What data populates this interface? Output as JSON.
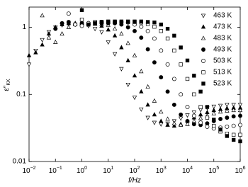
{
  "chart_data": {
    "type": "scatter",
    "xlabel": "f/Hz",
    "ylabel": {
      "symbol": "ε″",
      "subscript": "KK"
    },
    "xscale": "log",
    "yscale": "log",
    "xlim": [
      0.01,
      1000000
    ],
    "ylim": [
      0.01,
      2
    ],
    "xticks": [
      {
        "value": 0.01,
        "label": "10−2"
      },
      {
        "value": 0.1,
        "label": "10−1"
      },
      {
        "value": 1,
        "label": "100"
      },
      {
        "value": 10,
        "label": "101"
      },
      {
        "value": 100,
        "label": "102"
      },
      {
        "value": 1000,
        "label": "103"
      },
      {
        "value": 10000,
        "label": "104"
      },
      {
        "value": 100000,
        "label": "105"
      },
      {
        "value": 1000000,
        "label": "106"
      }
    ],
    "yticks": [
      0.01,
      0.1,
      1
    ],
    "legend": "upper right",
    "x": [
      0.01,
      0.0178,
      0.0316,
      0.0562,
      0.1,
      0.178,
      0.316,
      0.562,
      1,
      1.78,
      3.16,
      5.62,
      10,
      17.8,
      31.6,
      56.2,
      100,
      178,
      316,
      562,
      1000,
      1780,
      3160,
      5620,
      10000,
      17800,
      31600,
      56200,
      100000,
      178000,
      316000,
      562000,
      1000000
    ],
    "series": [
      {
        "name": "463 K",
        "color": "#000000",
        "marker": "triangle-down",
        "filled": false,
        "values": [
          0.28,
          0.45,
          0.65,
          0.85,
          1.0,
          1.08,
          1.1,
          1.1,
          1.1,
          1.05,
          0.95,
          0.85,
          0.6,
          0.4,
          0.24,
          0.14,
          0.09,
          0.06,
          0.045,
          0.038,
          0.036,
          0.037,
          0.04,
          0.044,
          0.049,
          0.054,
          0.059,
          0.063,
          0.066,
          0.068,
          0.07,
          0.07,
          0.07
        ]
      },
      {
        "name": "473 K",
        "color": "#000000",
        "marker": "triangle-up",
        "filled": true,
        "values": [
          0.38,
          0.42,
          0.55,
          0.8,
          1.0,
          1.1,
          1.15,
          1.15,
          1.15,
          1.15,
          1.12,
          1.05,
          0.92,
          0.75,
          0.5,
          0.32,
          0.19,
          0.11,
          0.07,
          0.05,
          0.04,
          0.035,
          0.034,
          0.036,
          0.04,
          0.045,
          0.05,
          0.054,
          0.058,
          0.06,
          0.062,
          0.063,
          0.063
        ]
      },
      {
        "name": "483 K",
        "color": "#000000",
        "marker": "triangle-up",
        "filled": false,
        "values": [
          null,
          null,
          1.5,
          0.7,
          0.6,
          0.8,
          1.0,
          1.1,
          1.15,
          1.15,
          1.15,
          1.12,
          1.08,
          0.95,
          0.8,
          0.58,
          0.38,
          0.22,
          0.13,
          0.08,
          0.055,
          0.043,
          0.037,
          0.035,
          0.036,
          0.04,
          0.044,
          0.048,
          0.052,
          0.055,
          0.057,
          0.058,
          0.058
        ]
      },
      {
        "name": "493 K",
        "color": "#000000",
        "marker": "circle",
        "filled": true,
        "values": [
          null,
          null,
          null,
          null,
          0.95,
          1.15,
          1.2,
          1.1,
          1.15,
          1.15,
          1.15,
          1.15,
          1.15,
          1.15,
          1.1,
          1.0,
          0.88,
          0.7,
          0.47,
          0.3,
          0.18,
          0.11,
          0.07,
          0.05,
          0.04,
          0.036,
          0.035,
          0.037,
          0.04,
          0.043,
          0.045,
          0.047,
          0.048
        ]
      },
      {
        "name": "503 K",
        "color": "#000000",
        "marker": "circle",
        "filled": false,
        "values": [
          null,
          null,
          null,
          null,
          null,
          null,
          1.6,
          1.1,
          1.05,
          1.15,
          1.2,
          1.2,
          1.2,
          1.2,
          1.2,
          1.18,
          1.1,
          1.02,
          0.88,
          0.68,
          0.45,
          0.28,
          0.17,
          0.1,
          0.065,
          0.048,
          0.038,
          0.033,
          0.031,
          0.032,
          0.033,
          0.034,
          0.035
        ]
      },
      {
        "name": "513 K",
        "color": "#000000",
        "marker": "square",
        "filled": false,
        "values": [
          null,
          null,
          null,
          null,
          null,
          null,
          null,
          null,
          1.3,
          1.1,
          1.2,
          1.2,
          1.2,
          1.2,
          1.2,
          1.2,
          1.2,
          1.18,
          1.12,
          1.02,
          0.88,
          0.68,
          0.45,
          0.28,
          0.17,
          0.1,
          0.065,
          0.045,
          0.034,
          0.028,
          0.026,
          0.025,
          0.025
        ]
      },
      {
        "name": "523 K",
        "color": "#000000",
        "marker": "square",
        "filled": true,
        "values": [
          null,
          null,
          null,
          null,
          null,
          null,
          null,
          null,
          1.8,
          1.1,
          1.15,
          1.2,
          1.22,
          1.22,
          1.22,
          1.22,
          1.22,
          1.22,
          1.2,
          1.18,
          1.1,
          0.95,
          0.75,
          0.5,
          0.32,
          0.19,
          0.11,
          0.065,
          0.042,
          0.03,
          0.024,
          0.021,
          0.02
        ]
      }
    ]
  }
}
